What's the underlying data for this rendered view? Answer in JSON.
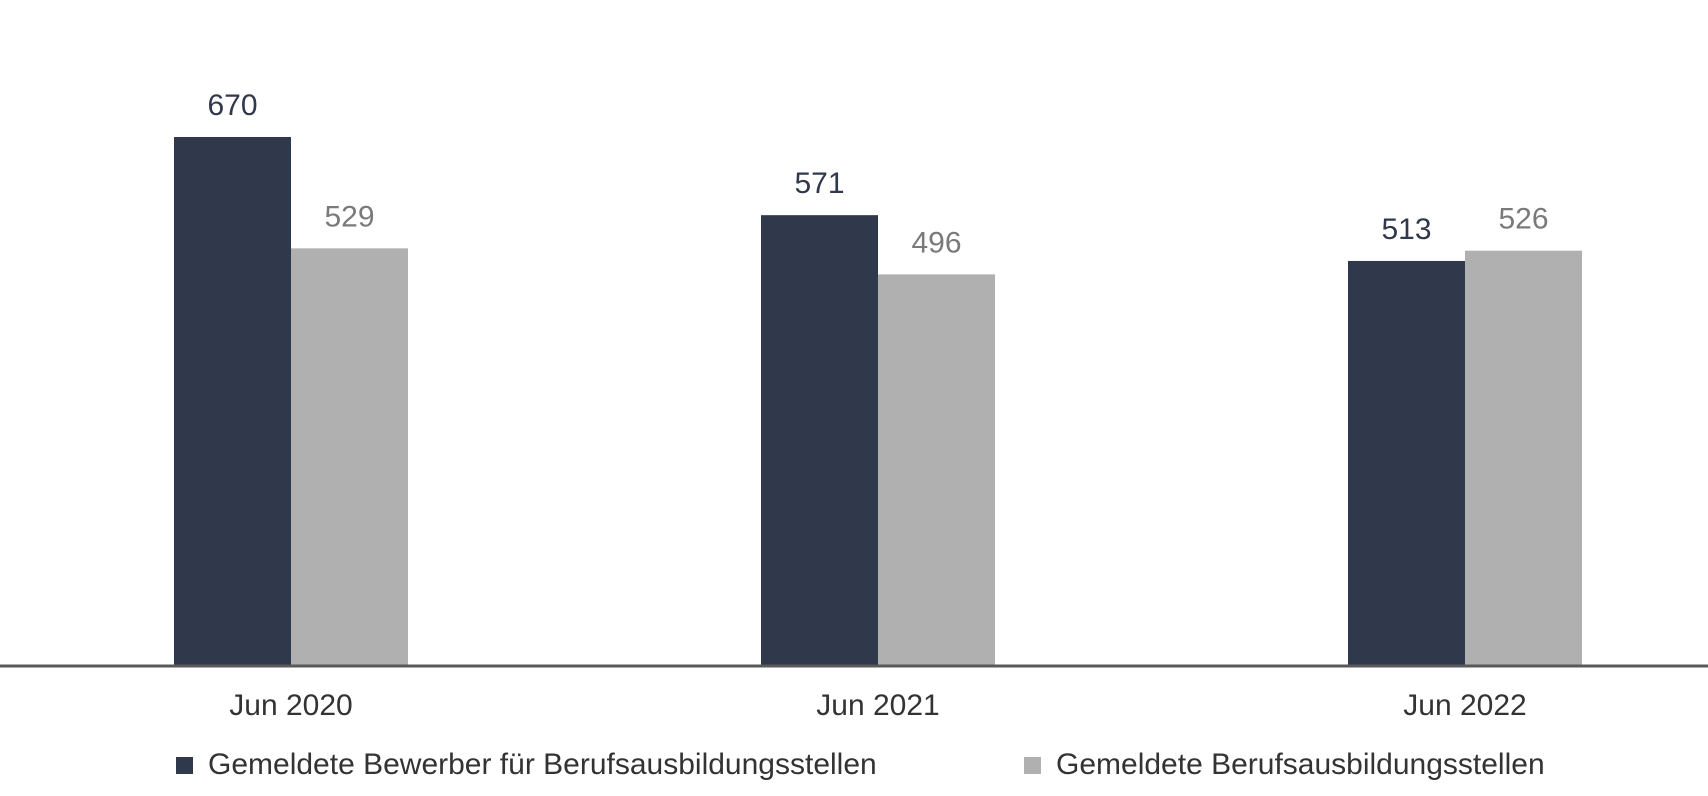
{
  "chart_data": {
    "type": "bar",
    "categories": [
      "Jun 2020",
      "Jun 2021",
      "Jun 2022"
    ],
    "series": [
      {
        "name": "Gemeldete Bewerber für Berufsausbildungsstellen",
        "values": [
          670,
          571,
          513
        ],
        "color": "#30384c",
        "label_color": "#30384c"
      },
      {
        "name": "Gemeldete Berufsausbildungsstellen",
        "values": [
          529,
          496,
          526
        ],
        "color": "#b0b0b0",
        "label_color": "#7a7a7a"
      }
    ],
    "value_labels": [
      [
        "670",
        "571",
        "513"
      ],
      [
        "529",
        "496",
        "526"
      ]
    ],
    "ylim": [
      0,
      670
    ],
    "grid": false,
    "legend_position": "bottom",
    "axis_color": "#595959"
  }
}
